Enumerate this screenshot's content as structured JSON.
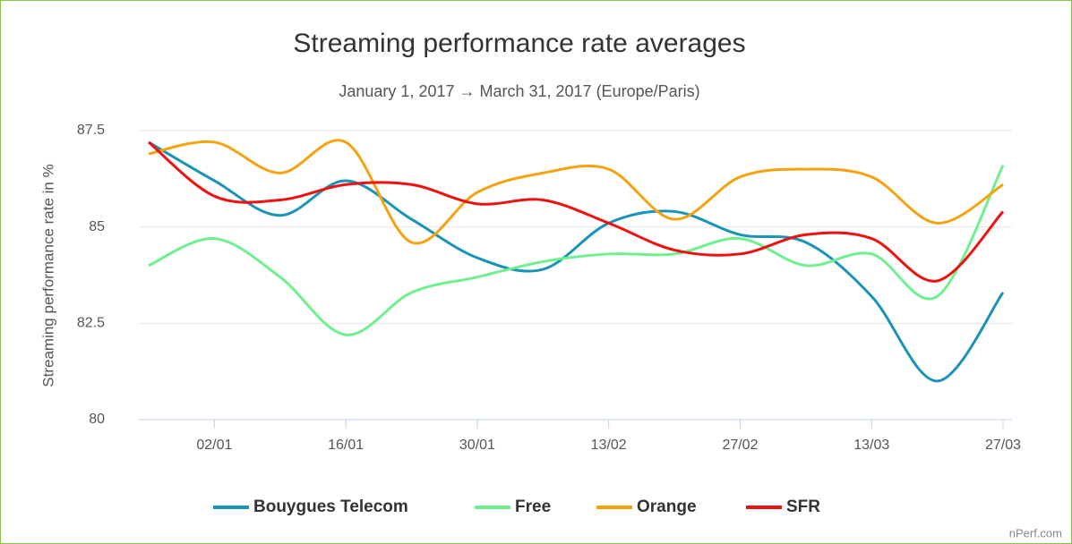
{
  "chart_data": {
    "type": "line",
    "title": "Streaming performance rate averages",
    "subtitle": "January 1, 2017 → March 31, 2017 (Europe/Paris)",
    "y_label": "Streaming performance rate in %",
    "credit": "nPerf.com",
    "categories": [
      null,
      "02/01",
      null,
      "16/01",
      null,
      "30/01",
      null,
      "13/02",
      null,
      "27/02",
      null,
      "13/03",
      null,
      "27/03"
    ],
    "series": [
      {
        "name": "Bouygues Telecom",
        "color": "#1a93b8",
        "values": [
          87.2,
          86.2,
          85.3,
          86.2,
          85.2,
          84.2,
          83.9,
          85.1,
          85.4,
          84.8,
          84.6,
          83.2,
          81.0,
          83.3
        ]
      },
      {
        "name": "Free",
        "color": "#6ef08f",
        "values": [
          84.0,
          84.7,
          83.7,
          82.2,
          83.3,
          83.7,
          84.1,
          84.3,
          84.3,
          84.7,
          84.0,
          84.3,
          83.2,
          86.6
        ]
      },
      {
        "name": "Orange",
        "color": "#f5a20f",
        "values": [
          86.9,
          87.2,
          86.4,
          87.2,
          84.6,
          85.9,
          86.4,
          86.5,
          85.2,
          86.3,
          86.5,
          86.3,
          85.1,
          86.1
        ]
      },
      {
        "name": "SFR",
        "color": "#ee1111",
        "values": [
          87.2,
          85.8,
          85.7,
          86.1,
          86.1,
          85.6,
          85.7,
          85.1,
          84.4,
          84.3,
          84.8,
          84.7,
          83.6,
          85.4
        ]
      }
    ],
    "ylim": [
      80,
      87.5
    ],
    "yticks": [
      80,
      82.5,
      85,
      87.5
    ],
    "grid": true,
    "legend": "bottom"
  }
}
